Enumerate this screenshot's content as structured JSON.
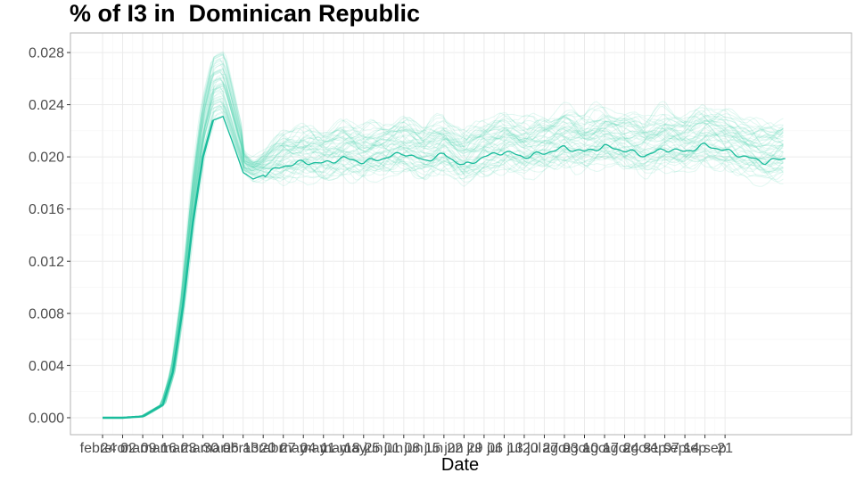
{
  "chart_data": {
    "type": "line",
    "title": "% of I3 in  Dominican Republic",
    "xlabel": "Date",
    "ylabel": "",
    "ylim": [
      -0.0013,
      0.0295
    ],
    "yticks": [
      "0.000",
      "0.004",
      "0.008",
      "0.012",
      "0.016",
      "0.020",
      "0.024",
      "0.028"
    ],
    "ytick_values": [
      0.0,
      0.004,
      0.008,
      0.012,
      0.016,
      0.02,
      0.024,
      0.028
    ],
    "xticks": [
      "febrero",
      "24 mar",
      "02 mar",
      "09 mar",
      "16 mar",
      "23 mar",
      "30 abr",
      "06 abr",
      "13 abr",
      "20 may",
      "27 may",
      "04 may",
      "11 may",
      "18 jun",
      "25 jun",
      "01 jun",
      "08 jun",
      "15 jun",
      "22 jul",
      "29 jul",
      "06 jul",
      "13 jul",
      "20 ago",
      "27 ago",
      "03 ago",
      "10 ago",
      "17 ago",
      "24 sep",
      "31 sep",
      "07 sep",
      "14 sep",
      "21"
    ],
    "grid": true,
    "colors": {
      "main": "#1abc9c",
      "ensemble": "#48d1b0",
      "panel_border": "#b3b3b3",
      "grid_major": "#ebebeb",
      "grid_minor": "#f5f5f5"
    },
    "ensemble_count": 60,
    "main_series": {
      "name": "",
      "x": [
        0,
        1,
        2,
        3,
        3.5,
        4,
        4.5,
        5,
        5.5,
        6,
        6.5,
        7,
        7.5,
        8,
        9,
        10,
        11,
        12,
        13,
        14,
        15,
        16,
        17,
        18,
        19,
        20,
        21,
        22,
        23,
        24,
        25,
        26,
        27,
        28,
        29,
        30,
        31,
        32,
        33,
        34
      ],
      "y": [
        0.0,
        0.0,
        0.0001,
        0.001,
        0.0035,
        0.0085,
        0.015,
        0.02,
        0.0228,
        0.0231,
        0.021,
        0.0188,
        0.0183,
        0.0186,
        0.0193,
        0.0196,
        0.0195,
        0.0199,
        0.0196,
        0.0199,
        0.0203,
        0.0197,
        0.0202,
        0.0193,
        0.02,
        0.0204,
        0.02,
        0.0203,
        0.0207,
        0.0204,
        0.0208,
        0.0205,
        0.0201,
        0.0206,
        0.0204,
        0.0209,
        0.0205,
        0.02,
        0.0196,
        0.0199
      ]
    }
  }
}
